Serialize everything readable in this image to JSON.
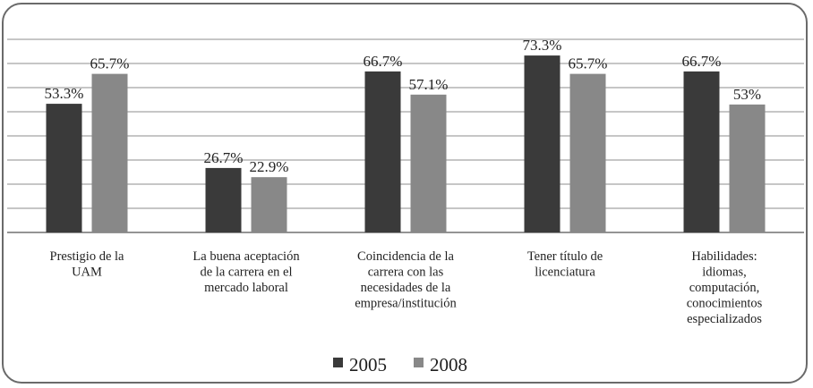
{
  "chart_data": {
    "type": "bar",
    "title": "",
    "xlabel": "",
    "ylabel": "",
    "ylim": [
      0,
      80
    ],
    "grid": true,
    "legend_position": "bottom",
    "categories": [
      [
        "Prestigio de la",
        "UAM"
      ],
      [
        "La buena aceptación",
        "de la carrera en el",
        "mercado laboral"
      ],
      [
        "Coincidencia de la",
        "carrera con las",
        "necesidades de la",
        "empresa/institución"
      ],
      [
        "Tener título de",
        "licenciatura"
      ],
      [
        "Habilidades:",
        "idiomas,",
        "computación,",
        "conocimientos",
        "especializados"
      ]
    ],
    "series": [
      {
        "name": "2005",
        "color": "#3a3a3a",
        "values": [
          53.3,
          26.7,
          66.7,
          73.3,
          66.7
        ],
        "labels": [
          "53.3%",
          "26.7%",
          "66.7%",
          "73.3%",
          "66.7%"
        ]
      },
      {
        "name": "2008",
        "color": "#888888",
        "values": [
          65.7,
          22.9,
          57.1,
          65.7,
          53
        ],
        "labels": [
          "65.7%",
          "22.9%",
          "57.1%",
          "65.7%",
          "53%"
        ]
      }
    ]
  }
}
